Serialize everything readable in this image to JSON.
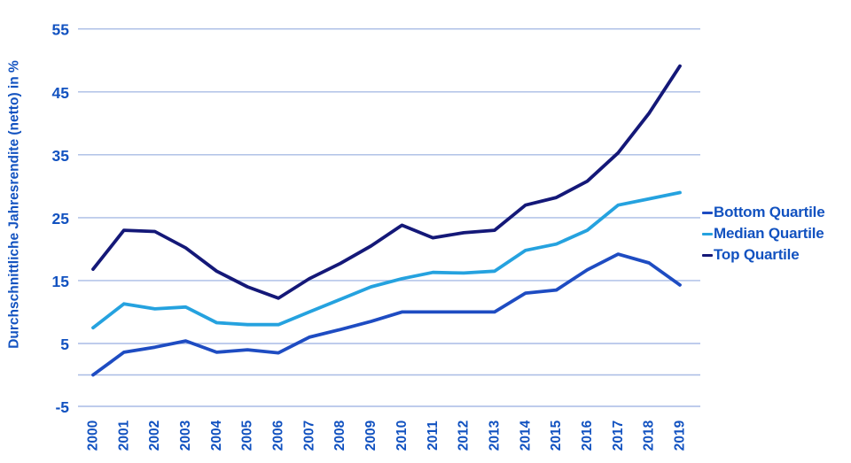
{
  "chart_data": {
    "type": "line",
    "title": "",
    "xlabel": "",
    "ylabel": "Durchschnittliche Jahresrendite (netto) in %",
    "x": [
      "2000",
      "2001",
      "2002",
      "2003",
      "2004",
      "2005",
      "2006",
      "2007",
      "2008",
      "2009",
      "2010",
      "2011",
      "2012",
      "2013",
      "2014",
      "2015",
      "2016",
      "2017",
      "2018",
      "2019"
    ],
    "series": [
      {
        "name": "Bottom Quartile",
        "color": "#1e4cc2",
        "values": [
          0,
          3.6,
          4.4,
          5.4,
          3.6,
          4,
          3.5,
          6,
          7.2,
          8.5,
          10,
          10,
          10,
          10,
          13,
          13.5,
          16.7,
          19.2,
          17.8,
          14.3
        ]
      },
      {
        "name": "Median Quartile",
        "color": "#25a2df",
        "values": [
          7.5,
          11.3,
          10.5,
          10.8,
          8.3,
          8,
          8,
          10,
          12,
          14,
          15.3,
          16.3,
          16.2,
          16.5,
          19.8,
          20.8,
          23,
          27,
          28,
          29
        ]
      },
      {
        "name": "Top Quartile",
        "color": "#141878",
        "values": [
          16.8,
          23,
          22.8,
          20.2,
          16.5,
          14,
          12.2,
          15.3,
          17.7,
          20.5,
          23.8,
          21.8,
          22.6,
          23,
          27,
          28.2,
          30.8,
          35.3,
          41.6,
          49.1
        ]
      }
    ],
    "ytick_labels": [
      "55",
      "45",
      "35",
      "25",
      "15",
      "5",
      "-5"
    ],
    "ytick_values": [
      55,
      45,
      35,
      25,
      15,
      5,
      -5
    ],
    "grid_values": [
      55,
      45,
      35,
      25,
      15,
      5,
      0,
      -5
    ],
    "ylim": [
      -5,
      55
    ],
    "grid": true,
    "legend_position": "right",
    "colors": {
      "axis_text": "#1252c0",
      "gridline": "#a9bce5",
      "background": "#ffffff"
    }
  }
}
